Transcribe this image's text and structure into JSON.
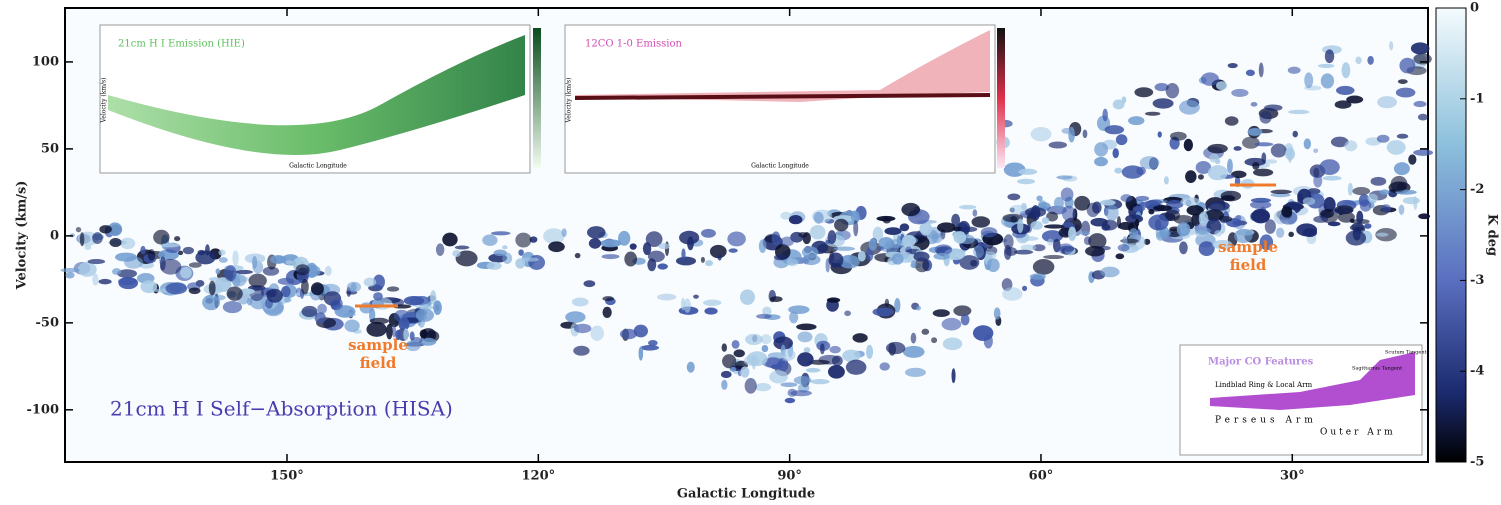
{
  "chart_data": {
    "type": "heatmap",
    "title": "21cm H I Self−Absorption (HISA)",
    "x_label": "Galactic Longitude",
    "y_label": "Velocity (km/s)",
    "xlim": [
      176.5,
      13.8
    ],
    "xticks": [
      {
        "value": 150,
        "label": "150°"
      },
      {
        "value": 120,
        "label": "120°"
      },
      {
        "value": 90,
        "label": "90°"
      },
      {
        "value": 60,
        "label": "60°"
      },
      {
        "value": 30,
        "label": "30°"
      }
    ],
    "ylim": [
      -130,
      131
    ],
    "yticks": [
      -100,
      -50,
      0,
      50,
      100
    ],
    "colorbar": {
      "label": "K deg",
      "lim": [
        -5,
        0
      ],
      "ticks": [
        0,
        -1,
        -2,
        -3,
        -4,
        -5
      ]
    },
    "annotations": [
      {
        "lines": [
          "sample",
          "field"
        ]
      },
      {
        "lines": [
          "sample",
          "field"
        ]
      }
    ]
  },
  "insets": [
    {
      "title": "21cm H I Emission (HIE)",
      "x_label": "Galactic Longitude",
      "y_label": "Velocity (km/s)"
    },
    {
      "title": "12CO 1-0 Emission",
      "x_label": "Galactic Longitude",
      "y_label": "Velocity (km/s)"
    },
    {
      "title": "Major CO Features",
      "labels": [
        "Lindblad Ring & Local Arm",
        "Perseus Arm",
        "Outer Arm",
        "Scutum Tangent",
        "Sagittarius Tangent"
      ]
    }
  ]
}
